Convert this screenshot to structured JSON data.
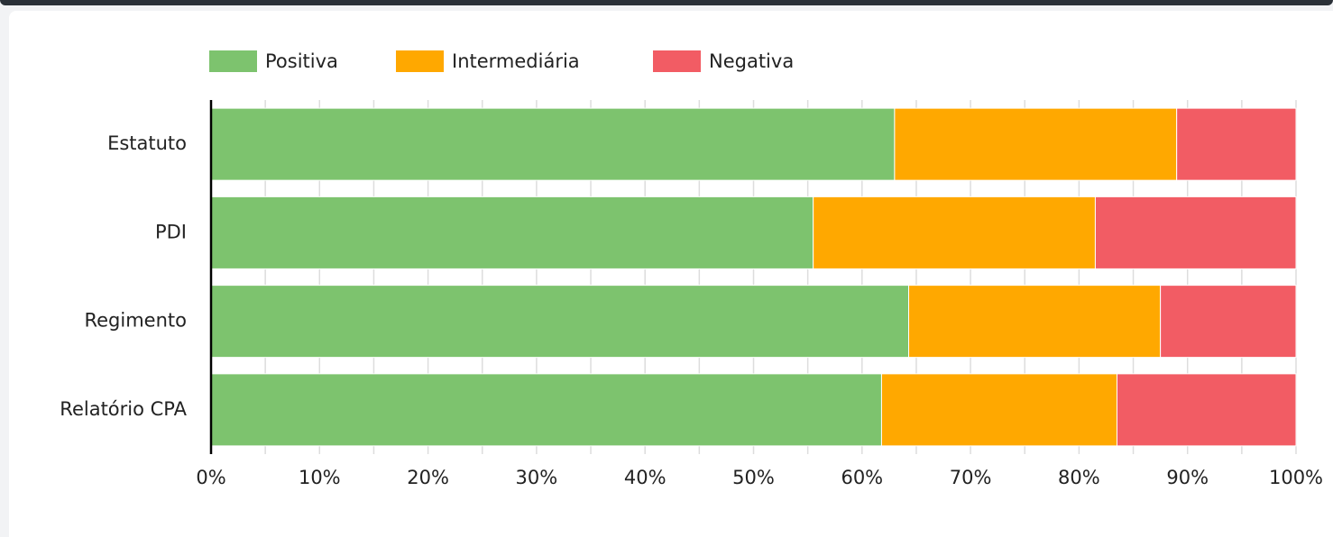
{
  "chart_data": {
    "type": "stacked_bar_horizontal",
    "categories": [
      "Estatuto",
      "PDI",
      "Regimento",
      "Relatório CPA"
    ],
    "series": [
      {
        "name": "Positiva",
        "color": "#7dc36e",
        "values": [
          63,
          55.5,
          64.3,
          61.8
        ]
      },
      {
        "name": "Intermediária",
        "color": "#ffa800",
        "values": [
          26,
          26,
          23.2,
          21.7
        ]
      },
      {
        "name": "Negativa",
        "color": "#f25c64",
        "values": [
          11,
          18.5,
          12.5,
          16.5
        ]
      }
    ],
    "xlim": [
      0,
      100
    ],
    "xticks": [
      {
        "value": 0,
        "label": "0%"
      },
      {
        "value": 10,
        "label": "10%"
      },
      {
        "value": 20,
        "label": "20%"
      },
      {
        "value": 30,
        "label": "30%"
      },
      {
        "value": 40,
        "label": "40%"
      },
      {
        "value": 50,
        "label": "50%"
      },
      {
        "value": 60,
        "label": "60%"
      },
      {
        "value": 70,
        "label": "70%"
      },
      {
        "value": 80,
        "label": "80%"
      },
      {
        "value": 90,
        "label": "90%"
      },
      {
        "value": 100,
        "label": "100%"
      }
    ],
    "xminorticks": [
      5,
      15,
      25,
      35,
      45,
      55,
      65,
      75,
      85,
      95
    ],
    "grid": true,
    "legend": "top"
  }
}
